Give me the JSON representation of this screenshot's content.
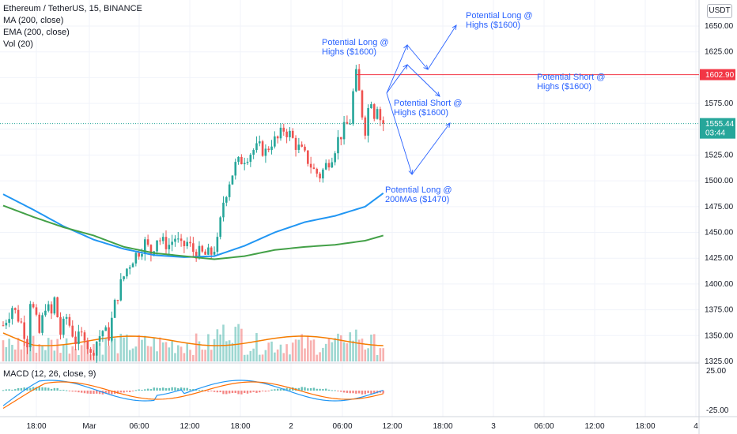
{
  "legend": {
    "symbol": "Ethereum / TetherUS, 15, BINANCE",
    "ma": "MA (200, close)",
    "ema": "EMA (200, close)",
    "vol": "Vol (20)",
    "macd": "MACD (12, 26, close, 9)"
  },
  "currency": "USDT",
  "price_axis": {
    "ticks": [
      "1650.00",
      "1625.00",
      "1600.00",
      "1575.00",
      "1550.00",
      "1525.00",
      "1500.00",
      "1475.00",
      "1450.00",
      "1425.00",
      "1400.00",
      "1375.00",
      "1350.00",
      "1325.00"
    ],
    "ticks_values": [
      1650,
      1625,
      1600,
      1575,
      1550,
      1525,
      1500,
      1475,
      1450,
      1425,
      1400,
      1375,
      1350,
      1325
    ],
    "level_label": "1602.90",
    "level_value": 1602.9,
    "current_label": "1555.44",
    "current_value": 1555.44,
    "countdown": "03:44"
  },
  "macd_axis": {
    "ticks": [
      "25.00",
      "-25.00"
    ],
    "ticks_values": [
      25,
      -25
    ]
  },
  "time_axis": {
    "labels": [
      "18:00",
      "Mar",
      "06:00",
      "12:00",
      "18:00",
      "2",
      "06:00",
      "12:00",
      "18:00",
      "3",
      "06:00",
      "12:00",
      "18:00",
      "4"
    ]
  },
  "annotations": {
    "long_top": [
      "Potential Long @",
      "Highs ($1600)"
    ],
    "long_mid": [
      "Potential Long @",
      "Highs ($1600)"
    ],
    "short_right": [
      "Potential Short @",
      "Highs ($1600)"
    ],
    "short_mid": [
      "Potential Short @",
      "Highs ($1600)"
    ],
    "long_bottom": [
      "Potential Long @",
      "200MAs ($1470)"
    ]
  },
  "colors": {
    "up": "#26a69a",
    "down": "#ef5350",
    "ma": "#2196f3",
    "ema": "#43a047",
    "vol_ma": "#f57c00",
    "macd_line": "#2196f3",
    "signal_line": "#ff6d00",
    "level_line": "#f23645",
    "current_line": "#26a69a",
    "annotation": "#2962ff"
  },
  "chart_data": {
    "type": "candlestick",
    "title": "Ethereum / TetherUS, 15, BINANCE",
    "close_path": [
      [
        0,
        1360
      ],
      [
        3,
        1378
      ],
      [
        6,
        1362
      ],
      [
        8,
        1344
      ],
      [
        9,
        1385
      ],
      [
        10,
        1375
      ],
      [
        12,
        1352
      ],
      [
        14,
        1380
      ],
      [
        16,
        1370
      ],
      [
        17,
        1385
      ],
      [
        19,
        1352
      ],
      [
        21,
        1368
      ],
      [
        24,
        1345
      ],
      [
        27,
        1352
      ],
      [
        29,
        1330
      ],
      [
        31,
        1345
      ],
      [
        33,
        1355
      ],
      [
        35,
        1350
      ],
      [
        37,
        1380
      ],
      [
        39,
        1400
      ],
      [
        41,
        1415
      ],
      [
        43,
        1425
      ],
      [
        45,
        1432
      ],
      [
        47,
        1440
      ],
      [
        49,
        1430
      ],
      [
        51,
        1445
      ],
      [
        53,
        1440
      ],
      [
        55,
        1438
      ],
      [
        57,
        1445
      ],
      [
        59,
        1435
      ],
      [
        61,
        1440
      ],
      [
        63,
        1432
      ],
      [
        65,
        1430
      ],
      [
        67,
        1428
      ],
      [
        69,
        1430
      ],
      [
        71,
        1440
      ],
      [
        72,
        1460
      ],
      [
        73,
        1480
      ],
      [
        75,
        1500
      ],
      [
        77,
        1515
      ],
      [
        79,
        1520
      ],
      [
        81,
        1525
      ],
      [
        83,
        1530
      ],
      [
        85,
        1532
      ],
      [
        87,
        1528
      ],
      [
        89,
        1538
      ],
      [
        91,
        1540
      ],
      [
        93,
        1550
      ],
      [
        95,
        1545
      ],
      [
        97,
        1535
      ],
      [
        99,
        1528
      ],
      [
        101,
        1520
      ],
      [
        103,
        1510
      ],
      [
        105,
        1505
      ],
      [
        107,
        1515
      ],
      [
        109,
        1525
      ],
      [
        111,
        1540
      ],
      [
        113,
        1550
      ],
      [
        115,
        1558
      ],
      [
        116,
        1585
      ],
      [
        117,
        1602
      ],
      [
        118,
        1585
      ],
      [
        119,
        1565
      ],
      [
        120,
        1550
      ],
      [
        121,
        1570
      ],
      [
        122,
        1580
      ],
      [
        123,
        1565
      ],
      [
        124,
        1575
      ],
      [
        125,
        1560
      ],
      [
        126,
        1555
      ]
    ],
    "ma200": [
      [
        0,
        1487
      ],
      [
        10,
        1472
      ],
      [
        20,
        1456
      ],
      [
        30,
        1443
      ],
      [
        40,
        1434
      ],
      [
        50,
        1428
      ],
      [
        60,
        1426
      ],
      [
        70,
        1427
      ],
      [
        80,
        1437
      ],
      [
        90,
        1450
      ],
      [
        100,
        1460
      ],
      [
        110,
        1466
      ],
      [
        120,
        1475
      ],
      [
        126,
        1488
      ]
    ],
    "ema200": [
      [
        0,
        1476
      ],
      [
        10,
        1465
      ],
      [
        20,
        1455
      ],
      [
        30,
        1447
      ],
      [
        40,
        1436
      ],
      [
        50,
        1430
      ],
      [
        60,
        1427
      ],
      [
        70,
        1424
      ],
      [
        80,
        1427
      ],
      [
        90,
        1433
      ],
      [
        100,
        1436
      ],
      [
        110,
        1438
      ],
      [
        120,
        1442
      ],
      [
        126,
        1447
      ]
    ],
    "x_range": [
      0,
      228
    ],
    "ylim": [
      1310,
      1660
    ],
    "resistance_level": 1602.9,
    "current_price": 1555.44
  }
}
